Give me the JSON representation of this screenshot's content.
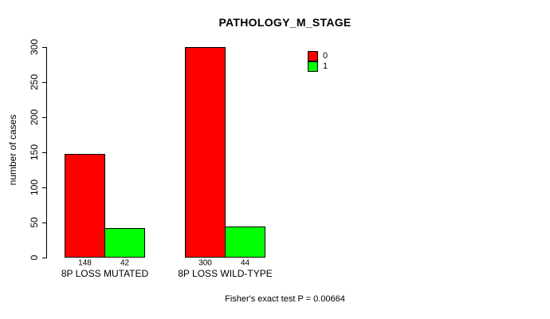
{
  "title": "PATHOLOGY_M_STAGE",
  "footer": "Fisher's exact test P = 0.00664",
  "chart_data": {
    "type": "bar",
    "title": "PATHOLOGY_M_STAGE",
    "xlabel": "",
    "ylabel": "number of cases",
    "categories": [
      "8P LOSS MUTATED",
      "8P LOSS WILD-TYPE"
    ],
    "series": [
      {
        "name": "0",
        "color": "#FF0000",
        "values": [
          148,
          300
        ]
      },
      {
        "name": "1",
        "color": "#00FF00",
        "values": [
          42,
          44
        ]
      }
    ],
    "bar_value_labels": [
      [
        "148",
        "300"
      ],
      [
        "42",
        "44"
      ]
    ],
    "ylim": [
      0,
      300
    ],
    "yticks": [
      0,
      50,
      100,
      150,
      200,
      250,
      300
    ],
    "grid": false,
    "legend_position": "upper-right-inside",
    "annotation": "Fisher's exact test P = 0.00664"
  },
  "legend": {
    "items": [
      {
        "label": "0",
        "color": "#FF0000"
      },
      {
        "label": "1",
        "color": "#00FF00"
      }
    ]
  }
}
